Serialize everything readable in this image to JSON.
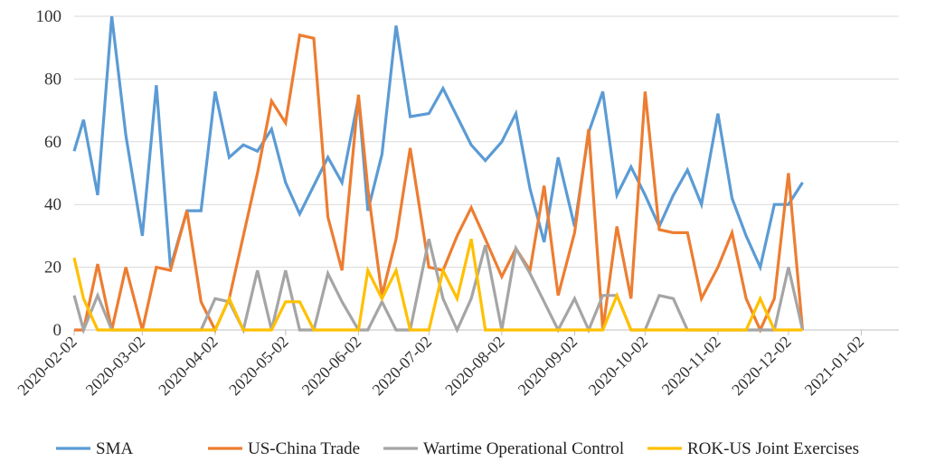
{
  "chart_data": {
    "type": "line",
    "title": "",
    "xlabel": "",
    "ylabel": "",
    "ylim": [
      0,
      100
    ],
    "yticks": [
      "0",
      "20",
      "40",
      "60",
      "80",
      "100"
    ],
    "grid": "horizontal",
    "legend_position": "bottom",
    "x_tick_labels": [
      "2020-02-02",
      "2020-03-02",
      "2020-04-02",
      "2020-05-02",
      "2020-06-02",
      "2020-07-02",
      "2020-08-02",
      "2020-09-02",
      "2020-10-02",
      "2020-11-02",
      "2020-12-02",
      "2021-01-02"
    ],
    "x": [
      "2020-02-02",
      "2020-02-06",
      "2020-02-12",
      "2020-02-18",
      "2020-02-24",
      "2020-03-02",
      "2020-03-08",
      "2020-03-14",
      "2020-03-21",
      "2020-03-27",
      "2020-04-02",
      "2020-04-08",
      "2020-04-14",
      "2020-04-20",
      "2020-04-26",
      "2020-05-02",
      "2020-05-08",
      "2020-05-14",
      "2020-05-20",
      "2020-05-26",
      "2020-06-02",
      "2020-06-06",
      "2020-06-12",
      "2020-06-18",
      "2020-06-24",
      "2020-07-02",
      "2020-07-08",
      "2020-07-14",
      "2020-07-20",
      "2020-07-26",
      "2020-08-02",
      "2020-08-08",
      "2020-08-14",
      "2020-08-20",
      "2020-08-26",
      "2020-09-02",
      "2020-09-08",
      "2020-09-14",
      "2020-09-20",
      "2020-09-26",
      "2020-10-02",
      "2020-10-08",
      "2020-10-14",
      "2020-10-20",
      "2020-10-26",
      "2020-11-02",
      "2020-11-08",
      "2020-11-14",
      "2020-11-20",
      "2020-11-26",
      "2020-12-02",
      "2020-12-08",
      "2020-12-14",
      "2020-12-20",
      "2020-12-26",
      "2021-01-02",
      "2021-01-08",
      "2021-01-14",
      "2021-01-18"
    ],
    "series": [
      {
        "name": "SMA",
        "color": "#5b9bd5",
        "values": [
          57,
          67,
          43,
          100,
          62,
          30,
          78,
          20,
          38,
          38,
          76,
          55,
          59,
          57,
          64,
          47,
          37,
          46,
          55,
          47,
          74,
          38,
          56,
          97,
          68,
          69,
          77,
          68,
          59,
          54,
          60,
          69,
          45,
          28,
          55,
          33,
          63,
          76,
          43,
          52,
          43,
          33,
          43,
          51,
          40,
          69,
          42,
          30,
          20,
          40,
          40,
          47,
          null,
          null,
          null,
          null,
          null,
          null,
          null
        ]
      },
      {
        "name": "US-China Trade",
        "color": "#ed7d31",
        "values": [
          0,
          0,
          21,
          0,
          20,
          0,
          20,
          19,
          38,
          9,
          0,
          10,
          30,
          50,
          73,
          66,
          94,
          93,
          36,
          19,
          75,
          45,
          11,
          29,
          58,
          20,
          19,
          30,
          39,
          29,
          17,
          26,
          19,
          46,
          11,
          31,
          64,
          0,
          33,
          10,
          76,
          32,
          31,
          31,
          10,
          20,
          31,
          10,
          0,
          10,
          50,
          0,
          null,
          null,
          null,
          null,
          null,
          null,
          null
        ]
      },
      {
        "name": "Wartime Operational Control",
        "color": "#a5a5a5",
        "values": [
          11,
          0,
          11,
          0,
          0,
          0,
          0,
          0,
          0,
          0,
          10,
          9,
          0,
          19,
          0,
          19,
          0,
          0,
          18,
          9,
          0,
          0,
          9,
          0,
          0,
          29,
          10,
          0,
          10,
          27,
          0,
          26,
          18,
          9,
          0,
          10,
          0,
          11,
          11,
          0,
          0,
          11,
          10,
          0,
          0,
          0,
          0,
          0,
          0,
          0,
          20,
          0,
          null,
          null,
          null,
          null,
          null,
          null,
          null
        ]
      },
      {
        "name": "ROK-US Joint Exercises",
        "color": "#ffc000",
        "values": [
          23,
          10,
          0,
          0,
          0,
          0,
          0,
          0,
          0,
          0,
          0,
          10,
          0,
          0,
          0,
          9,
          9,
          0,
          0,
          0,
          0,
          19,
          10,
          19,
          0,
          0,
          19,
          10,
          29,
          0,
          0,
          0,
          0,
          0,
          0,
          0,
          0,
          0,
          11,
          0,
          0,
          0,
          0,
          0,
          0,
          0,
          0,
          0,
          10,
          0,
          0,
          0,
          null,
          null,
          null,
          null,
          null,
          null,
          null
        ]
      }
    ]
  }
}
